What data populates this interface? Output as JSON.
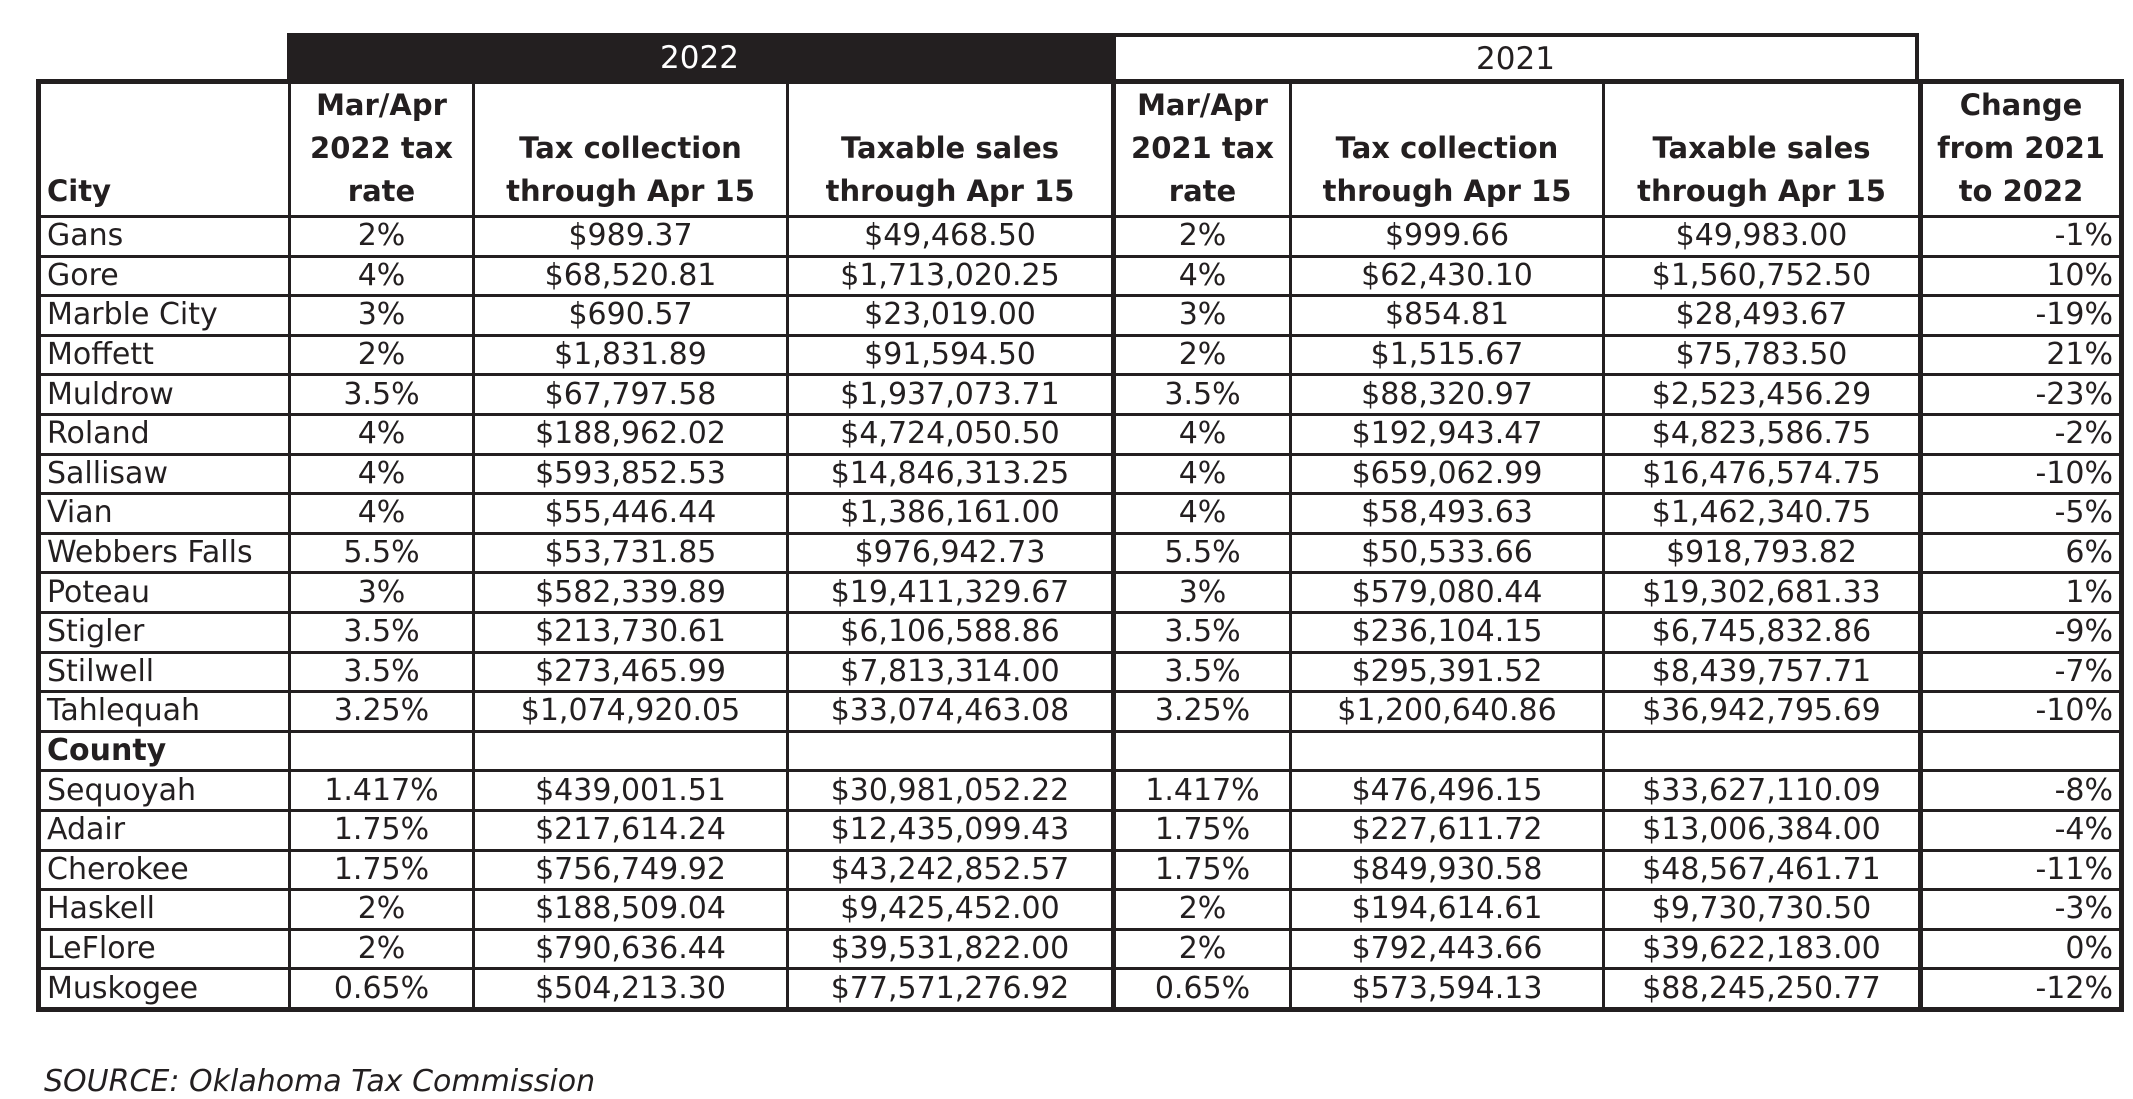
{
  "year_headers": {
    "current": "2022",
    "previous": "2021"
  },
  "columns": [
    "City",
    "Mar/Apr 2022 tax rate",
    "Tax collection through Apr 15",
    "Taxable sales through Apr 15",
    "Mar/Apr 2021 tax rate",
    "Tax collection through Apr 15",
    "Taxable sales through Apr 15",
    "Change from 2021 to 2022"
  ],
  "header_lines": [
    [
      "City"
    ],
    [
      "Mar/Apr",
      "2022 tax",
      "rate"
    ],
    [
      "Tax collection",
      "through Apr 15"
    ],
    [
      "Taxable sales",
      "through Apr 15"
    ],
    [
      "Mar/Apr",
      "2021 tax",
      "rate"
    ],
    [
      "Tax collection",
      "through Apr 15"
    ],
    [
      "Taxable sales",
      "through Apr 15"
    ],
    [
      "Change",
      "from 2021",
      "to 2022"
    ]
  ],
  "rows": [
    [
      "Gans",
      "2%",
      "$989.37",
      "$49,468.50",
      "2%",
      "$999.66",
      "$49,983.00",
      "-1%"
    ],
    [
      "Gore",
      "4%",
      "$68,520.81",
      "$1,713,020.25",
      "4%",
      "$62,430.10",
      "$1,560,752.50",
      "10%"
    ],
    [
      "Marble City",
      "3%",
      "$690.57",
      "$23,019.00",
      "3%",
      "$854.81",
      "$28,493.67",
      "-19%"
    ],
    [
      "Moffett",
      "2%",
      "$1,831.89",
      "$91,594.50",
      "2%",
      "$1,515.67",
      "$75,783.50",
      "21%"
    ],
    [
      "Muldrow",
      "3.5%",
      "$67,797.58",
      "$1,937,073.71",
      "3.5%",
      "$88,320.97",
      "$2,523,456.29",
      "-23%"
    ],
    [
      "Roland",
      "4%",
      "$188,962.02",
      "$4,724,050.50",
      "4%",
      "$192,943.47",
      "$4,823,586.75",
      "-2%"
    ],
    [
      "Sallisaw",
      "4%",
      "$593,852.53",
      "$14,846,313.25",
      "4%",
      "$659,062.99",
      "$16,476,574.75",
      "-10%"
    ],
    [
      "Vian",
      "4%",
      "$55,446.44",
      "$1,386,161.00",
      "4%",
      "$58,493.63",
      "$1,462,340.75",
      "-5%"
    ],
    [
      "Webbers Falls",
      "5.5%",
      "$53,731.85",
      "$976,942.73",
      "5.5%",
      "$50,533.66",
      "$918,793.82",
      "6%"
    ],
    [
      "Poteau",
      "3%",
      "$582,339.89",
      "$19,411,329.67",
      "3%",
      "$579,080.44",
      "$19,302,681.33",
      "1%"
    ],
    [
      "Stigler",
      "3.5%",
      "$213,730.61",
      "$6,106,588.86",
      "3.5%",
      "$236,104.15",
      "$6,745,832.86",
      "-9%"
    ],
    [
      "Stilwell",
      "3.5%",
      "$273,465.99",
      "$7,813,314.00",
      "3.5%",
      "$295,391.52",
      "$8,439,757.71",
      "-7%"
    ],
    [
      "Tahlequah",
      "3.25%",
      "$1,074,920.05",
      "$33,074,463.08",
      "3.25%",
      "$1,200,640.86",
      "$36,942,795.69",
      "-10%"
    ],
    [
      "County",
      "",
      "",
      "",
      "",
      "",
      "",
      ""
    ],
    [
      "Sequoyah",
      "1.417%",
      "$439,001.51",
      "$30,981,052.22",
      "1.417%",
      "$476,496.15",
      "$33,627,110.09",
      "-8%"
    ],
    [
      "Adair",
      "1.75%",
      "$217,614.24",
      "$12,435,099.43",
      "1.75%",
      "$227,611.72",
      "$13,006,384.00",
      "-4%"
    ],
    [
      "Cherokee",
      "1.75%",
      "$756,749.92",
      "$43,242,852.57",
      "1.75%",
      "$849,930.58",
      "$48,567,461.71",
      "-11%"
    ],
    [
      "Haskell",
      "2%",
      "$188,509.04",
      "$9,425,452.00",
      "2%",
      "$194,614.61",
      "$9,730,730.50",
      "-3%"
    ],
    [
      "LeFlore",
      "2%",
      "$790,636.44",
      "$39,531,822.00",
      "2%",
      "$792,443.66",
      "$39,622,183.00",
      "0%"
    ],
    [
      "Muskogee",
      "0.65%",
      "$504,213.30",
      "$77,571,276.92",
      "0.65%",
      "$573,594.13",
      "$88,245,250.77",
      "-12%"
    ]
  ],
  "section_row_index": 13,
  "source": "SOURCE: Oklahoma Tax Commission",
  "colors": {
    "ink": "#231f20",
    "background": "#ffffff"
  }
}
